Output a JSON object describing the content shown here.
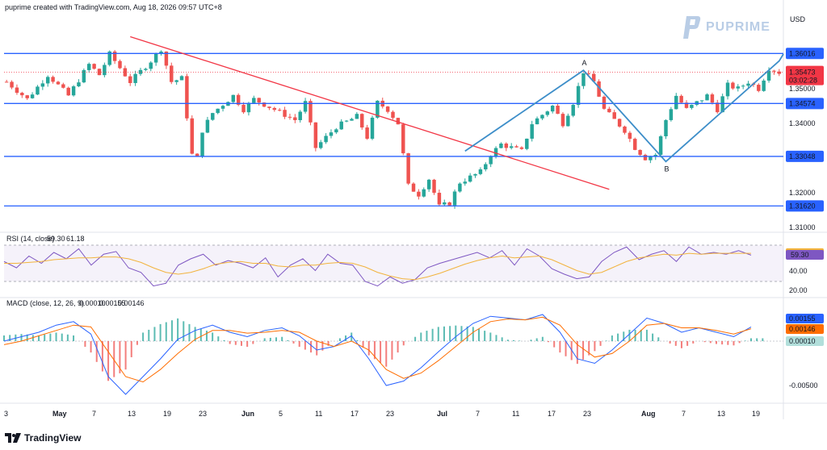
{
  "header": {
    "credit": "puprime created with TradingView.com, Aug 18, 2026 09:57 UTC+8"
  },
  "brand": {
    "name": "PUPRIME",
    "color": "#b9cde6"
  },
  "footer": {
    "name": "TradingView"
  },
  "colors": {
    "up": "#26a69a",
    "down": "#ef5350",
    "level": "#2962ff",
    "trend": "#f23645",
    "pattern": "#3d8ec9",
    "rsi": "#7e57c2",
    "rsi_ma": "#f2b33d",
    "macd": "#2962ff",
    "signal": "#ff6d00"
  },
  "chart_data": [
    {
      "type": "candlestick",
      "title": "",
      "currency": "USD",
      "y_ticks": [
        "1.35000",
        "1.34000",
        "1.32000",
        "1.31000"
      ],
      "x_ticks": [
        "3",
        "May",
        "7",
        "13",
        "19",
        "23",
        "Jun",
        "5",
        "11",
        "17",
        "23",
        "Jul",
        "7",
        "11",
        "17",
        "23",
        "Aug",
        "7",
        "13",
        "19"
      ],
      "ylim": [
        1.3045,
        1.3685
      ],
      "price_path": [
        [
          0,
          1.352
        ],
        [
          4,
          1.347
        ],
        [
          8,
          1.354
        ],
        [
          12,
          1.348
        ],
        [
          16,
          1.357
        ],
        [
          18,
          1.354
        ],
        [
          20,
          1.36
        ],
        [
          24,
          1.352
        ],
        [
          28,
          1.358
        ],
        [
          30,
          1.3615
        ],
        [
          32,
          1.352
        ],
        [
          34,
          1.353
        ],
        [
          36,
          1.331
        ],
        [
          37,
          1.33
        ],
        [
          38,
          1.338
        ],
        [
          40,
          1.343
        ],
        [
          44,
          1.348
        ],
        [
          46,
          1.344
        ],
        [
          48,
          1.347
        ],
        [
          52,
          1.344
        ],
        [
          56,
          1.341
        ],
        [
          58,
          1.346
        ],
        [
          60,
          1.333
        ],
        [
          64,
          1.339
        ],
        [
          68,
          1.342
        ],
        [
          70,
          1.336
        ],
        [
          72,
          1.346
        ],
        [
          74,
          1.344
        ],
        [
          76,
          1.34
        ],
        [
          78,
          1.322
        ],
        [
          80,
          1.3195
        ],
        [
          82,
          1.324
        ],
        [
          84,
          1.316
        ],
        [
          86,
          1.317
        ],
        [
          88,
          1.323
        ],
        [
          92,
          1.326
        ],
        [
          94,
          1.331
        ],
        [
          96,
          1.334
        ],
        [
          100,
          1.332
        ],
        [
          102,
          1.34
        ],
        [
          106,
          1.345
        ],
        [
          108,
          1.34
        ],
        [
          110,
          1.346
        ],
        [
          112,
          1.355
        ],
        [
          114,
          1.352
        ],
        [
          116,
          1.344
        ],
        [
          120,
          1.338
        ],
        [
          122,
          1.333
        ],
        [
          124,
          1.33
        ],
        [
          126,
          1.331
        ],
        [
          128,
          1.341
        ],
        [
          130,
          1.348
        ],
        [
          132,
          1.344
        ],
        [
          134,
          1.346
        ],
        [
          136,
          1.348
        ],
        [
          138,
          1.344
        ],
        [
          140,
          1.351
        ],
        [
          142,
          1.35
        ],
        [
          144,
          1.352
        ],
        [
          146,
          1.35
        ],
        [
          148,
          1.356
        ],
        [
          150,
          1.3547
        ]
      ],
      "overlays": {
        "horizontal_levels": [
          1.36016,
          1.34574,
          1.33048,
          1.3162
        ],
        "trendline": [
          [
            24,
            1.365
          ],
          [
            117,
            1.321
          ]
        ],
        "pattern_points": [
          [
            89,
            1.332
          ],
          [
            112,
            1.3553
          ],
          [
            128,
            1.329
          ],
          [
            150,
            1.358
          ]
        ],
        "pattern_labels": [
          "A",
          "B"
        ]
      },
      "price_labels": [
        {
          "text": "1.36016",
          "value": 1.36016,
          "style": "level"
        },
        {
          "text": "1.35473",
          "value": 1.35473,
          "sub": "03:02:28",
          "style": "current"
        },
        {
          "text": "1.34574",
          "value": 1.34574,
          "style": "level"
        },
        {
          "text": "1.33048",
          "value": 1.33048,
          "style": "level"
        },
        {
          "text": "1.31620",
          "value": 1.3162,
          "style": "level"
        }
      ]
    },
    {
      "type": "line",
      "title": "RSI (14, close)",
      "legend_values": [
        "59.30",
        "61.18"
      ],
      "band": [
        30,
        70
      ],
      "ylim": [
        15,
        78
      ],
      "y_ticks": [
        "40.00",
        "20.00"
      ],
      "value_labels": [
        {
          "text": "61.18",
          "value": 61.18,
          "color": "#f2b33d"
        },
        {
          "text": "59.30",
          "value": 59.3,
          "color": "#7e57c2"
        }
      ],
      "series": [
        {
          "name": "RSI",
          "values": [
            52,
            45,
            58,
            50,
            62,
            55,
            66,
            48,
            60,
            63,
            45,
            40,
            25,
            28,
            48,
            55,
            60,
            48,
            53,
            50,
            45,
            56,
            35,
            48,
            55,
            42,
            60,
            50,
            48,
            30,
            25,
            35,
            28,
            32,
            45,
            50,
            54,
            58,
            62,
            56,
            64,
            48,
            66,
            58,
            44,
            38,
            33,
            35,
            52,
            62,
            68,
            54,
            60,
            64,
            52,
            68,
            60,
            62,
            60,
            64,
            59
          ]
        },
        {
          "name": "RSI MA",
          "values": [
            50,
            50,
            51,
            52,
            54,
            55,
            56,
            56,
            57,
            57,
            55,
            51,
            45,
            40,
            38,
            40,
            44,
            49,
            51,
            52,
            50,
            50,
            47,
            46,
            48,
            48,
            50,
            51,
            50,
            46,
            40,
            36,
            33,
            32,
            35,
            39,
            44,
            49,
            53,
            56,
            58,
            56,
            57,
            58,
            54,
            48,
            42,
            38,
            40,
            46,
            52,
            56,
            58,
            60,
            59,
            61,
            60,
            61,
            61,
            61,
            61
          ]
        }
      ]
    },
    {
      "type": "line",
      "title": "MACD (close, 12, 26, 9)",
      "legend_values": [
        "0.00010",
        "0.00155",
        "0.00146"
      ],
      "ylim": [
        -0.0066,
        0.0036
      ],
      "y_ticks": [
        "-0.00500"
      ],
      "value_labels": [
        {
          "text": "0.00155",
          "value": 0.00155,
          "color": "#2962ff"
        },
        {
          "text": "0.00146",
          "value": 0.00146,
          "color": "#ff6d00"
        },
        {
          "text": "0.00010",
          "value": 0.0001,
          "color": "#b2dfdb"
        }
      ],
      "series": [
        {
          "name": "MACD",
          "values": [
            0.0,
            0.0005,
            0.001,
            0.0018,
            0.0022,
            0.0008,
            -0.004,
            -0.006,
            -0.004,
            -0.002,
            0.0002,
            0.0012,
            0.0018,
            0.001,
            0.0005,
            0.0012,
            0.0015,
            0.0006,
            -0.001,
            -0.0006,
            0.0006,
            -0.002,
            -0.005,
            -0.0045,
            -0.003,
            -0.0012,
            0.0005,
            0.002,
            0.0028,
            0.0026,
            0.0024,
            0.003,
            0.001,
            -0.002,
            -0.0025,
            -0.001,
            0.0008,
            0.0026,
            0.002,
            0.001,
            0.0015,
            0.001,
            0.0005,
            0.0016
          ]
        },
        {
          "name": "Signal",
          "values": [
            -0.0004,
            0.0,
            0.0006,
            0.0012,
            0.0018,
            0.0016,
            -0.0012,
            -0.004,
            -0.0046,
            -0.0032,
            -0.0014,
            0.0002,
            0.0012,
            0.0012,
            0.0009,
            0.001,
            0.0012,
            0.001,
            0.0,
            -0.0006,
            0.0,
            -0.001,
            -0.0032,
            -0.0042,
            -0.0036,
            -0.0022,
            -0.0006,
            0.001,
            0.0022,
            0.0025,
            0.0024,
            0.0027,
            0.0018,
            -0.0004,
            -0.0018,
            -0.0014,
            0.0,
            0.0018,
            0.002,
            0.0015,
            0.0015,
            0.0012,
            0.0008,
            0.0014
          ]
        }
      ]
    }
  ]
}
